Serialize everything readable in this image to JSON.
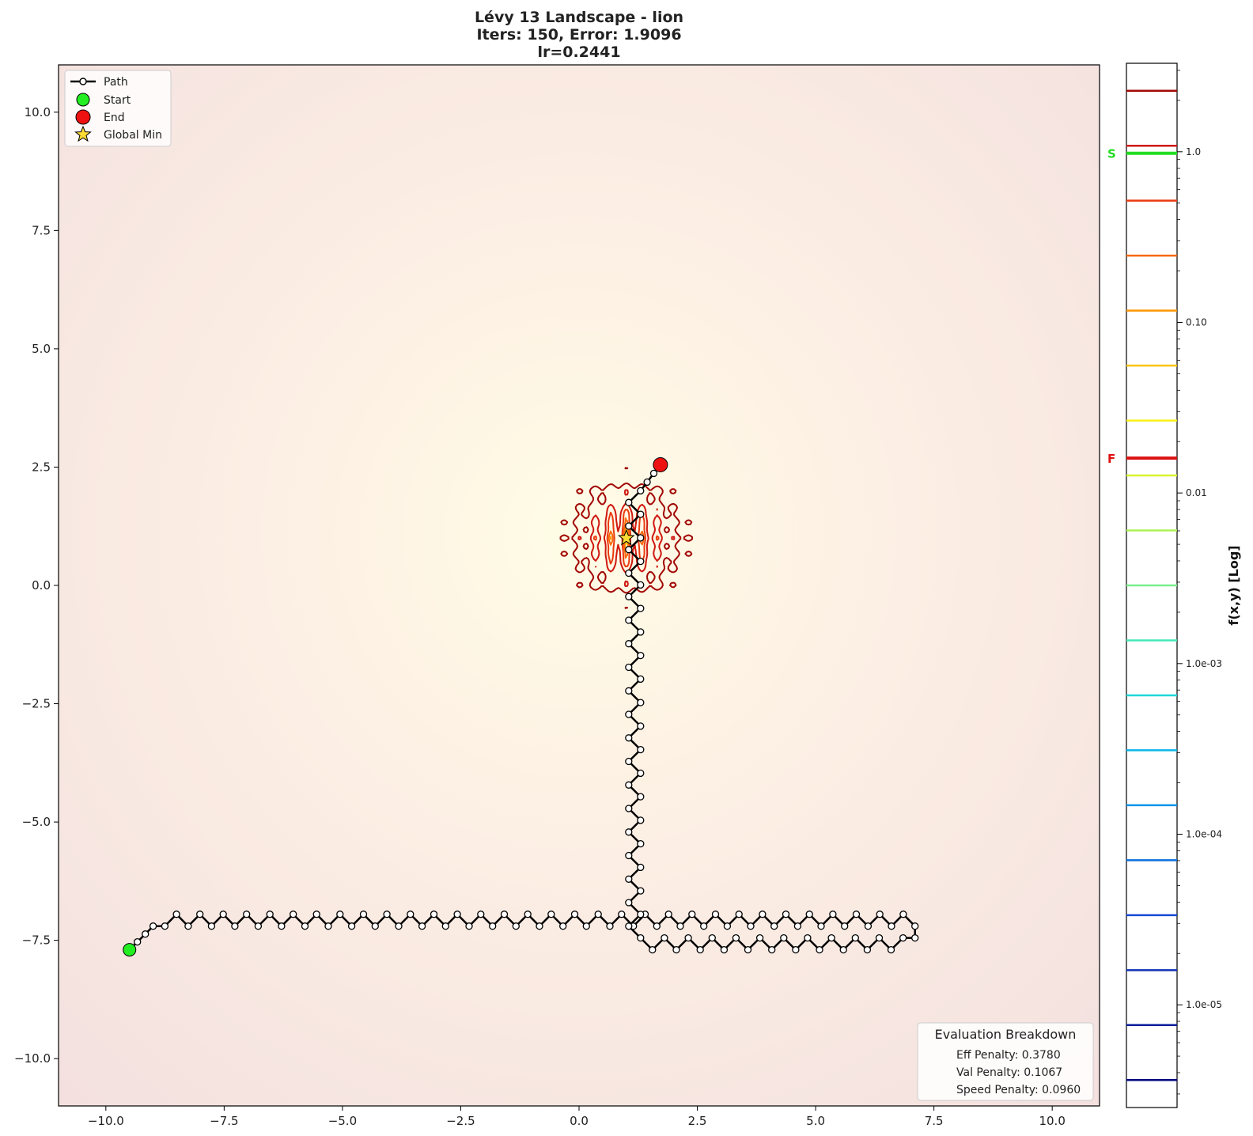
{
  "chart_data": {
    "type": "line",
    "title_lines": [
      "Lévy 13 Landscape - lion",
      "Iters: 150, Error: 1.9096",
      "lr=0.2441"
    ],
    "xlim": [
      -11,
      11
    ],
    "ylim": [
      -11,
      11
    ],
    "x_ticks": [
      -10,
      -7.5,
      -5,
      -2.5,
      0,
      2.5,
      5,
      7.5,
      10
    ],
    "x_tick_labels": [
      "−10.0",
      "−7.5",
      "−5.0",
      "−2.5",
      "0.0",
      "2.5",
      "5.0",
      "7.5",
      "10.0"
    ],
    "y_ticks": [
      10,
      7.5,
      5,
      2.5,
      0,
      -2.5,
      -5,
      -7.5,
      -10
    ],
    "y_tick_labels": [
      "10.0",
      "7.5",
      "5.0",
      "2.5",
      "0.0",
      "−2.5",
      "−5.0",
      "−7.5",
      "−10.0"
    ],
    "legend": {
      "placement": "upper-left",
      "entries": [
        "Path",
        "Start",
        "End",
        "Global Min"
      ]
    },
    "start": {
      "x": -9.5,
      "y": -7.7
    },
    "end": {
      "x": 1.72,
      "y": 2.55
    },
    "global_min": {
      "x": 1.0,
      "y": 1.0
    },
    "path_waypoints": [
      {
        "x": -9.5,
        "y": -7.7
      },
      {
        "x": -9.0,
        "y": -7.2
      },
      {
        "x": -5.3,
        "y": -7.2
      },
      {
        "x": 7.1,
        "y": -7.2
      },
      {
        "x": 7.1,
        "y": -7.45
      },
      {
        "x": 1.3,
        "y": -7.45
      },
      {
        "x": 1.3,
        "y": 2.0
      },
      {
        "x": 1.72,
        "y": 2.55
      }
    ],
    "path_zigzag_amplitude": 0.25,
    "evaluation": {
      "title": "Evaluation Breakdown",
      "lines": [
        "Eff Penalty: 0.3780",
        "Val Penalty: 0.1067",
        "Speed Penalty: 0.0960"
      ]
    },
    "colorbar": {
      "label": "f(x,y) [Log]",
      "scale": "log",
      "range": [
        2.5e-06,
        3.3
      ],
      "ticks": [
        1.0,
        0.1,
        0.01,
        0.001,
        0.0001,
        1e-05
      ],
      "tick_labels": [
        "1.0",
        "0.10",
        "0.01",
        "1.0e-03",
        "1.0e-04",
        "1.0e-05"
      ],
      "start_value": 0.98,
      "final_value": 0.016,
      "start_label": "S",
      "final_label": "F",
      "start_color": "#22dd22",
      "final_color": "#dd1111"
    },
    "colors": {
      "path": "#000000",
      "start": "#22ee22",
      "end": "#ee1111",
      "star": "#ffdd33"
    }
  }
}
